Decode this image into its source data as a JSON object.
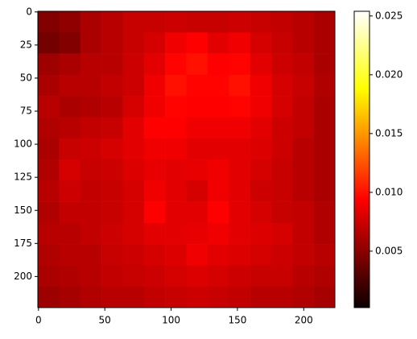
{
  "chart_data": {
    "type": "heatmap",
    "colormap": "hot",
    "xlim": [
      -0.5,
      223.5
    ],
    "ylim": [
      223.5,
      -0.5
    ],
    "xticks": [
      0,
      50,
      100,
      150,
      200
    ],
    "yticks": [
      0,
      25,
      50,
      75,
      100,
      125,
      150,
      175,
      200
    ],
    "clim": [
      0.0002,
      0.0254
    ],
    "colorbar_ticks": [
      0.005,
      {
        "value": 0.01,
        "label": "0.010"
      },
      0.015,
      {
        "value": 0.02,
        "label": "0.020"
      },
      0.025
    ],
    "z": [
      [
        0.0045,
        0.005,
        0.006,
        0.0065,
        0.007,
        0.007,
        0.0072,
        0.007,
        0.007,
        0.0072,
        0.007,
        0.0068,
        0.0065,
        0.006
      ],
      [
        0.004,
        0.0045,
        0.006,
        0.0065,
        0.007,
        0.0075,
        0.0085,
        0.009,
        0.008,
        0.0085,
        0.0075,
        0.007,
        0.0065,
        0.006
      ],
      [
        0.0055,
        0.006,
        0.0065,
        0.0065,
        0.0072,
        0.008,
        0.0095,
        0.01,
        0.009,
        0.0095,
        0.008,
        0.0072,
        0.0068,
        0.006
      ],
      [
        0.006,
        0.0065,
        0.0065,
        0.0068,
        0.0072,
        0.0085,
        0.01,
        0.0095,
        0.0095,
        0.01,
        0.0085,
        0.0075,
        0.007,
        0.0062
      ],
      [
        0.0065,
        0.006,
        0.0062,
        0.0065,
        0.0075,
        0.0085,
        0.0095,
        0.009,
        0.009,
        0.0095,
        0.0085,
        0.0075,
        0.0068,
        0.006
      ],
      [
        0.0062,
        0.0065,
        0.0068,
        0.007,
        0.008,
        0.009,
        0.009,
        0.0085,
        0.0085,
        0.0085,
        0.008,
        0.0072,
        0.0068,
        0.006
      ],
      [
        0.006,
        0.007,
        0.0072,
        0.0075,
        0.008,
        0.0085,
        0.0085,
        0.008,
        0.008,
        0.008,
        0.0078,
        0.0072,
        0.0065,
        0.006
      ],
      [
        0.0062,
        0.0075,
        0.007,
        0.0072,
        0.0078,
        0.0082,
        0.008,
        0.0082,
        0.0085,
        0.008,
        0.0075,
        0.007,
        0.0065,
        0.006
      ],
      [
        0.0065,
        0.0072,
        0.0068,
        0.007,
        0.0075,
        0.0085,
        0.008,
        0.0075,
        0.0085,
        0.008,
        0.0072,
        0.007,
        0.0065,
        0.006
      ],
      [
        0.0062,
        0.0068,
        0.0068,
        0.007,
        0.0075,
        0.009,
        0.008,
        0.008,
        0.009,
        0.008,
        0.0075,
        0.007,
        0.0068,
        0.0062
      ],
      [
        0.0065,
        0.0065,
        0.0068,
        0.0072,
        0.0075,
        0.008,
        0.008,
        0.0082,
        0.0085,
        0.008,
        0.0078,
        0.0075,
        0.0068,
        0.0062
      ],
      [
        0.0062,
        0.0065,
        0.0065,
        0.007,
        0.0072,
        0.0075,
        0.0078,
        0.0085,
        0.008,
        0.0078,
        0.0075,
        0.0072,
        0.0068,
        0.0065
      ],
      [
        0.006,
        0.0062,
        0.0065,
        0.0068,
        0.007,
        0.0072,
        0.0075,
        0.0078,
        0.0075,
        0.0072,
        0.007,
        0.007,
        0.0065,
        0.0062
      ],
      [
        0.0055,
        0.0058,
        0.0062,
        0.0065,
        0.0065,
        0.0068,
        0.007,
        0.0072,
        0.007,
        0.0068,
        0.0065,
        0.0065,
        0.0062,
        0.0058
      ]
    ]
  }
}
